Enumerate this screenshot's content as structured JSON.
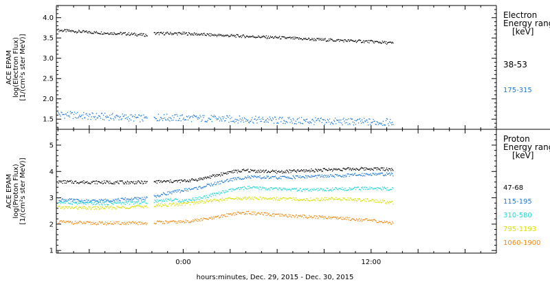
{
  "footer": {
    "time_axis_label": "hours:minutes, Dec. 29, 2015 - Dec. 30, 2015"
  },
  "chart_data": [
    {
      "type": "line",
      "panel": "electron",
      "ylabel": [
        "ACE EPAM",
        "log(Electron Flux)",
        "[1/(cm²s ster MeV)]"
      ],
      "ylim": [
        1.25,
        4.3
      ],
      "yticks": [
        1.5,
        2.0,
        2.5,
        3.0,
        3.5,
        4.0
      ],
      "ytick_labels": [
        "1.5",
        "2.0",
        "2.5",
        "3.0",
        "3.5",
        "4.0"
      ],
      "x_unit": "hours from Dec. 29, 2015 00:00",
      "xlim": [
        -8.1,
        20.0
      ],
      "xticks": [
        0,
        12
      ],
      "xtick_labels": [
        "0:00",
        "12:00"
      ],
      "data_gap_hours": [
        -2.3,
        -1.9
      ],
      "legend_title": [
        "Electron",
        "Energy ranges",
        "[keV]"
      ],
      "legend_position": "right",
      "series": [
        {
          "name": "38-53",
          "color": "#000000",
          "x": [
            -8.0,
            -6.0,
            -4.0,
            -2.3,
            -1.9,
            0.0,
            2.0,
            4.0,
            6.0,
            8.0,
            10.0,
            12.0,
            13.4
          ],
          "y": [
            3.7,
            3.65,
            3.62,
            3.58,
            3.62,
            3.62,
            3.58,
            3.55,
            3.52,
            3.48,
            3.45,
            3.42,
            3.38
          ]
        },
        {
          "name": "175-315",
          "color": "#1e78d2",
          "x": [
            -8.0,
            -6.0,
            -4.0,
            -2.3,
            -1.9,
            0.0,
            2.0,
            4.0,
            6.0,
            8.0,
            10.0,
            12.0,
            13.4
          ],
          "y": [
            1.63,
            1.58,
            1.56,
            1.52,
            1.55,
            1.54,
            1.52,
            1.5,
            1.48,
            1.46,
            1.45,
            1.44,
            1.43
          ]
        }
      ]
    },
    {
      "type": "line",
      "panel": "proton",
      "ylabel": [
        "ACE EPAM",
        "log(Proton Flux)",
        "[1/(cm²s ster MeV)]"
      ],
      "ylim": [
        0.9,
        5.6
      ],
      "yticks": [
        1,
        2,
        3,
        4,
        5
      ],
      "ytick_labels": [
        "1",
        "2",
        "3",
        "4",
        "5"
      ],
      "x_unit": "hours from Dec. 29, 2015 00:00",
      "xlim": [
        -8.1,
        20.0
      ],
      "xticks": [
        0,
        12
      ],
      "xtick_labels": [
        "0:00",
        "12:00"
      ],
      "data_gap_hours": [
        -2.3,
        -1.9
      ],
      "legend_title": [
        "Proton",
        "Energy ranges",
        "[keV]"
      ],
      "legend_position": "right",
      "series": [
        {
          "name": "47-68",
          "color": "#000000",
          "x": [
            -8.0,
            -4.0,
            -2.3,
            -1.9,
            0.0,
            1.0,
            2.0,
            3.0,
            4.0,
            6.0,
            8.0,
            10.0,
            12.0,
            13.4
          ],
          "y": [
            3.62,
            3.6,
            3.6,
            3.62,
            3.65,
            3.72,
            3.85,
            4.0,
            4.05,
            4.0,
            4.05,
            4.1,
            4.12,
            4.1
          ]
        },
        {
          "name": "115-195",
          "color": "#1e78d2",
          "x": [
            -8.0,
            -6.0,
            -4.0,
            -2.3,
            -1.9,
            -1.0,
            0.0,
            1.0,
            2.0,
            3.0,
            4.0,
            6.0,
            8.0,
            10.0,
            12.0,
            13.4
          ],
          "y": [
            2.95,
            2.88,
            2.95,
            3.0,
            3.05,
            3.2,
            3.3,
            3.4,
            3.55,
            3.7,
            3.8,
            3.78,
            3.82,
            3.85,
            3.92,
            3.9
          ]
        },
        {
          "name": "310-580",
          "color": "#1fd6d6",
          "x": [
            -8.0,
            -6.0,
            -4.0,
            -2.3,
            -1.9,
            -1.0,
            0.0,
            1.0,
            2.0,
            3.0,
            4.0,
            6.0,
            8.0,
            10.0,
            12.0,
            13.4
          ],
          "y": [
            2.85,
            2.8,
            2.82,
            2.85,
            2.88,
            2.95,
            2.9,
            3.0,
            3.15,
            3.3,
            3.4,
            3.35,
            3.3,
            3.35,
            3.38,
            3.35
          ]
        },
        {
          "name": "795-1193",
          "color": "#d8e000",
          "x": [
            -8.0,
            -6.0,
            -4.0,
            -2.3,
            -1.9,
            0.0,
            1.0,
            2.0,
            3.0,
            4.0,
            6.0,
            8.0,
            10.0,
            12.0,
            13.4
          ],
          "y": [
            2.65,
            2.62,
            2.65,
            2.7,
            2.72,
            2.78,
            2.85,
            2.92,
            2.98,
            3.0,
            2.98,
            2.95,
            2.98,
            2.92,
            2.82
          ]
        },
        {
          "name": "1060-1900",
          "color": "#ee8a10",
          "x": [
            -8.0,
            -6.0,
            -4.0,
            -2.3,
            -1.9,
            0.0,
            2.0,
            3.0,
            4.0,
            6.0,
            8.0,
            10.0,
            12.0,
            13.4
          ],
          "y": [
            2.1,
            2.05,
            2.05,
            2.05,
            2.08,
            2.1,
            2.25,
            2.4,
            2.45,
            2.35,
            2.3,
            2.25,
            2.15,
            2.05
          ]
        }
      ]
    }
  ]
}
